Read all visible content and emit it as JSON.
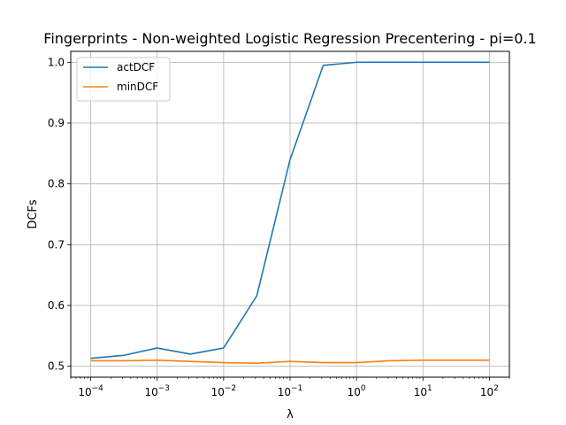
{
  "chart_data": {
    "type": "line",
    "title": "Fingerprints - Non-weighted Logistic Regression Precentering - pi=0.1",
    "xlabel": "λ",
    "ylabel": "DCFs",
    "xscale": "log",
    "xlim": [
      5e-05,
      200
    ],
    "ylim": [
      0.482,
      1.018
    ],
    "x": [
      0.0001,
      0.000316,
      0.001,
      0.00316,
      0.01,
      0.0316,
      0.1,
      0.316,
      1,
      3.16,
      10,
      31.6,
      100
    ],
    "series": [
      {
        "name": "actDCF",
        "color": "#1f77b4",
        "values": [
          0.513,
          0.518,
          0.53,
          0.52,
          0.53,
          0.616,
          0.84,
          0.995,
          1.0,
          1.0,
          1.0,
          1.0,
          1.0
        ]
      },
      {
        "name": "minDCF",
        "color": "#ff7f0e",
        "values": [
          0.509,
          0.509,
          0.51,
          0.508,
          0.506,
          0.505,
          0.508,
          0.506,
          0.506,
          0.509,
          0.51,
          0.51,
          0.51
        ]
      }
    ],
    "x_ticks": [
      {
        "exp": "-4",
        "value": 0.0001
      },
      {
        "exp": "-3",
        "value": 0.001
      },
      {
        "exp": "-2",
        "value": 0.01
      },
      {
        "exp": "-1",
        "value": 0.1
      },
      {
        "exp": "0",
        "value": 1
      },
      {
        "exp": "1",
        "value": 10
      },
      {
        "exp": "2",
        "value": 100
      }
    ],
    "x_tick_base": "10",
    "y_ticks": [
      {
        "label": "0.5",
        "value": 0.5
      },
      {
        "label": "0.6",
        "value": 0.6
      },
      {
        "label": "0.7",
        "value": 0.7
      },
      {
        "label": "0.8",
        "value": 0.8
      },
      {
        "label": "0.9",
        "value": 0.9
      },
      {
        "label": "1.0",
        "value": 1.0
      }
    ],
    "grid": true,
    "legend_position": "top-left"
  }
}
